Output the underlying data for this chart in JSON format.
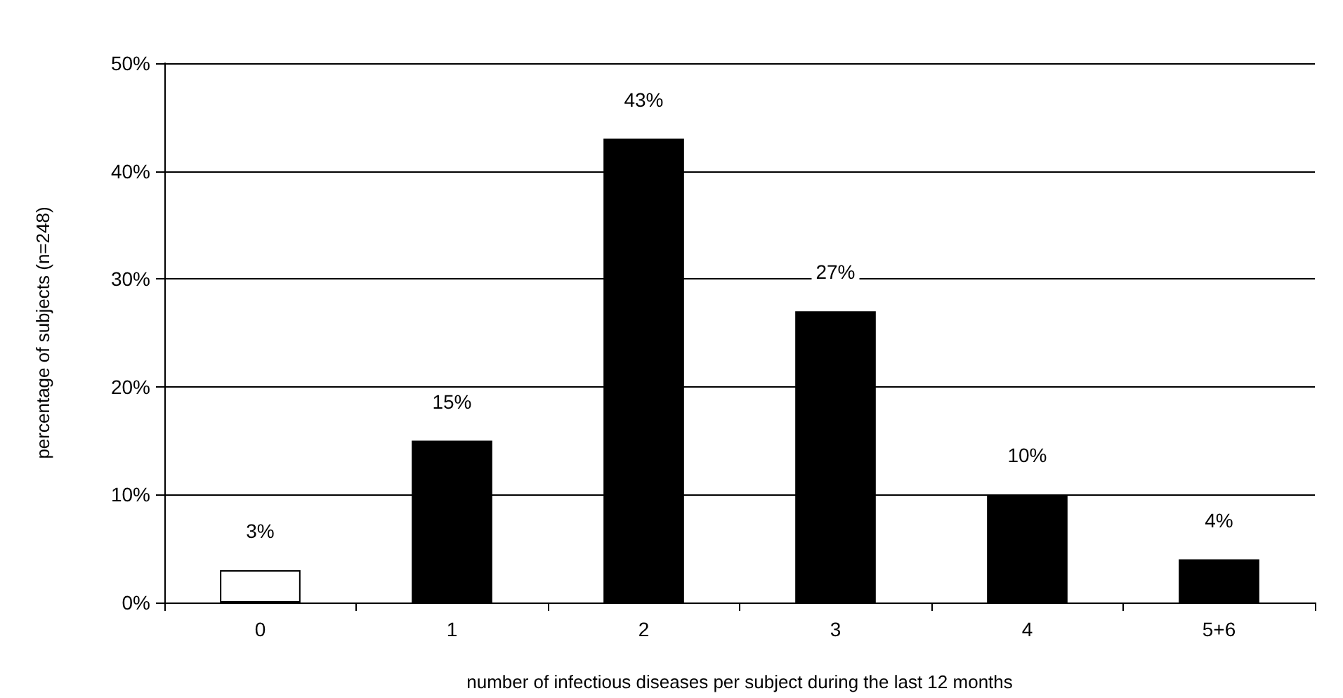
{
  "chart_data": {
    "type": "bar",
    "xlabel": "number of infectious diseases per subject during the last 12 months",
    "ylabel": "percentage of subjects (n=248)",
    "categories": [
      "0",
      "1",
      "2",
      "3",
      "4",
      "5+6"
    ],
    "values": [
      3,
      15,
      43,
      27,
      10,
      4
    ],
    "colors": [
      "#ffffff",
      "#000000",
      "#000000",
      "#000000",
      "#000000",
      "#000000"
    ],
    "value_labels": [
      "3%",
      "15%",
      "43%",
      "27%",
      "10%",
      "4%"
    ],
    "ylim": [
      0,
      50
    ],
    "yticks": [
      {
        "value": 0,
        "label": "0%"
      },
      {
        "value": 10,
        "label": "10%"
      },
      {
        "value": 20,
        "label": "20%"
      },
      {
        "value": 30,
        "label": "30%"
      },
      {
        "value": 40,
        "label": "40%"
      },
      {
        "value": 50,
        "label": "50%"
      }
    ],
    "grid": "y"
  }
}
